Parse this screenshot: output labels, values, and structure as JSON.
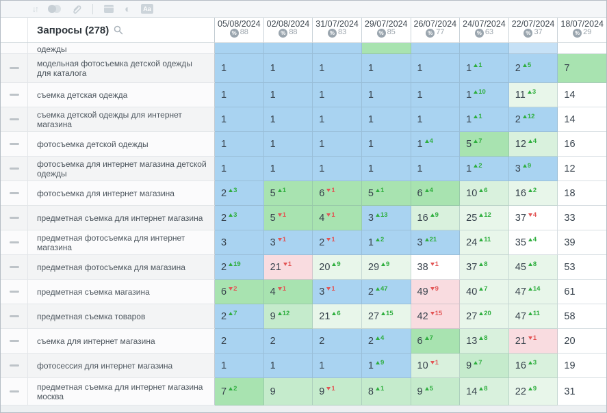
{
  "toolbar": {
    "icons": [
      "sort-icon",
      "groups-icon",
      "link-icon",
      "window-icon",
      "contrast-icon",
      "text-style-icon"
    ]
  },
  "header": {
    "queries_label": "Запросы (278)",
    "columns": [
      {
        "date": "05/08/2024",
        "score": "88"
      },
      {
        "date": "02/08/2024",
        "score": "88"
      },
      {
        "date": "31/07/2024",
        "score": "83"
      },
      {
        "date": "29/07/2024",
        "score": "85"
      },
      {
        "date": "26/07/2024",
        "score": "77"
      },
      {
        "date": "24/07/2024",
        "score": "63"
      },
      {
        "date": "22/07/2024",
        "score": "37"
      },
      {
        "date": "18/07/2024",
        "score": "29"
      }
    ]
  },
  "colors": {
    "b": "#a9d3f1",
    "b2": "#c6e1f6",
    "g": "#a8e3b0",
    "g2": "#c5ebcc",
    "g3": "#d9f1dd",
    "g4": "#e8f6ea",
    "p": "#f9dce0",
    "w": "#ffffff"
  },
  "rows": [
    {
      "partial": true,
      "keyword": "одежды",
      "cells": [
        {
          "bg": "b"
        },
        {
          "bg": "b"
        },
        {
          "bg": "b"
        },
        {
          "bg": "g"
        },
        {
          "bg": "b"
        },
        {
          "bg": "b"
        },
        {
          "bg": "b2"
        },
        {
          "bg": "w"
        }
      ]
    },
    {
      "keyword": "модельная фотосъемка детской одежды для каталога",
      "h": 42,
      "cells": [
        {
          "v": "1",
          "bg": "b"
        },
        {
          "v": "1",
          "bg": "b"
        },
        {
          "v": "1",
          "bg": "b"
        },
        {
          "v": "1",
          "bg": "b"
        },
        {
          "v": "1",
          "bg": "b"
        },
        {
          "v": "1",
          "d": "1",
          "dir": "up",
          "bg": "b"
        },
        {
          "v": "2",
          "d": "5",
          "dir": "up",
          "bg": "b"
        },
        {
          "v": "7",
          "bg": "g"
        }
      ]
    },
    {
      "keyword": "съемка детская одежда",
      "cells": [
        {
          "v": "1",
          "bg": "b"
        },
        {
          "v": "1",
          "bg": "b"
        },
        {
          "v": "1",
          "bg": "b"
        },
        {
          "v": "1",
          "bg": "b"
        },
        {
          "v": "1",
          "bg": "b"
        },
        {
          "v": "1",
          "d": "10",
          "dir": "up",
          "bg": "b"
        },
        {
          "v": "11",
          "d": "3",
          "dir": "up",
          "bg": "g4"
        },
        {
          "v": "14",
          "bg": "w"
        }
      ]
    },
    {
      "keyword": "съемка детской одежды для интернет магазина",
      "cells": [
        {
          "v": "1",
          "bg": "b"
        },
        {
          "v": "1",
          "bg": "b"
        },
        {
          "v": "1",
          "bg": "b"
        },
        {
          "v": "1",
          "bg": "b"
        },
        {
          "v": "1",
          "bg": "b"
        },
        {
          "v": "1",
          "d": "1",
          "dir": "up",
          "bg": "b"
        },
        {
          "v": "2",
          "d": "12",
          "dir": "up",
          "bg": "b"
        },
        {
          "v": "14",
          "bg": "w"
        }
      ]
    },
    {
      "keyword": "фотосъемка детской одежды",
      "cells": [
        {
          "v": "1",
          "bg": "b"
        },
        {
          "v": "1",
          "bg": "b"
        },
        {
          "v": "1",
          "bg": "b"
        },
        {
          "v": "1",
          "bg": "b"
        },
        {
          "v": "1",
          "d": "4",
          "dir": "up",
          "bg": "b"
        },
        {
          "v": "5",
          "d": "7",
          "dir": "up",
          "bg": "g"
        },
        {
          "v": "12",
          "d": "4",
          "dir": "up",
          "bg": "g3"
        },
        {
          "v": "16",
          "bg": "w"
        }
      ]
    },
    {
      "keyword": "фотосъемка для интернет магазина детской одежды",
      "cells": [
        {
          "v": "1",
          "bg": "b"
        },
        {
          "v": "1",
          "bg": "b"
        },
        {
          "v": "1",
          "bg": "b"
        },
        {
          "v": "1",
          "bg": "b"
        },
        {
          "v": "1",
          "bg": "b"
        },
        {
          "v": "1",
          "d": "2",
          "dir": "up",
          "bg": "b"
        },
        {
          "v": "3",
          "d": "9",
          "dir": "up",
          "bg": "b"
        },
        {
          "v": "12",
          "bg": "w"
        }
      ]
    },
    {
      "keyword": "фотосъемка для интернет магазина",
      "cells": [
        {
          "v": "2",
          "d": "3",
          "dir": "up",
          "bg": "b"
        },
        {
          "v": "5",
          "d": "1",
          "dir": "up",
          "bg": "g"
        },
        {
          "v": "6",
          "d": "1",
          "dir": "down",
          "bg": "g"
        },
        {
          "v": "5",
          "d": "1",
          "dir": "up",
          "bg": "g"
        },
        {
          "v": "6",
          "d": "4",
          "dir": "up",
          "bg": "g"
        },
        {
          "v": "10",
          "d": "6",
          "dir": "up",
          "bg": "g3"
        },
        {
          "v": "16",
          "d": "2",
          "dir": "up",
          "bg": "g4"
        },
        {
          "v": "18",
          "bg": "w"
        }
      ]
    },
    {
      "keyword": "предметная съемка для интернет магазина",
      "cells": [
        {
          "v": "2",
          "d": "3",
          "dir": "up",
          "bg": "b"
        },
        {
          "v": "5",
          "d": "1",
          "dir": "down",
          "bg": "g"
        },
        {
          "v": "4",
          "d": "1",
          "dir": "down",
          "bg": "g"
        },
        {
          "v": "3",
          "d": "13",
          "dir": "up",
          "bg": "b"
        },
        {
          "v": "16",
          "d": "9",
          "dir": "up",
          "bg": "g3"
        },
        {
          "v": "25",
          "d": "12",
          "dir": "up",
          "bg": "g4"
        },
        {
          "v": "37",
          "d": "4",
          "dir": "down",
          "bg": "w"
        },
        {
          "v": "33",
          "bg": "w"
        }
      ]
    },
    {
      "keyword": "предметная фотосъемка для интернет магазина",
      "cells": [
        {
          "v": "3",
          "bg": "b"
        },
        {
          "v": "3",
          "d": "1",
          "dir": "down",
          "bg": "b"
        },
        {
          "v": "2",
          "d": "1",
          "dir": "down",
          "bg": "b"
        },
        {
          "v": "1",
          "d": "2",
          "dir": "up",
          "bg": "b"
        },
        {
          "v": "3",
          "d": "21",
          "dir": "up",
          "bg": "b"
        },
        {
          "v": "24",
          "d": "11",
          "dir": "up",
          "bg": "g4"
        },
        {
          "v": "35",
          "d": "4",
          "dir": "up",
          "bg": "w"
        },
        {
          "v": "39",
          "bg": "w"
        }
      ]
    },
    {
      "keyword": "предметная фотосъемка для магазина",
      "cells": [
        {
          "v": "2",
          "d": "19",
          "dir": "up",
          "bg": "b"
        },
        {
          "v": "21",
          "d": "1",
          "dir": "down",
          "bg": "p"
        },
        {
          "v": "20",
          "d": "9",
          "dir": "up",
          "bg": "g4"
        },
        {
          "v": "29",
          "d": "9",
          "dir": "up",
          "bg": "g4"
        },
        {
          "v": "38",
          "d": "1",
          "dir": "down",
          "bg": "w"
        },
        {
          "v": "37",
          "d": "8",
          "dir": "up",
          "bg": "g4"
        },
        {
          "v": "45",
          "d": "8",
          "dir": "up",
          "bg": "g4"
        },
        {
          "v": "53",
          "bg": "w"
        }
      ]
    },
    {
      "keyword": "предметная съемка магазина",
      "cells": [
        {
          "v": "6",
          "d": "2",
          "dir": "down",
          "bg": "g"
        },
        {
          "v": "4",
          "d": "1",
          "dir": "down",
          "bg": "g"
        },
        {
          "v": "3",
          "d": "1",
          "dir": "down",
          "bg": "b"
        },
        {
          "v": "2",
          "d": "47",
          "dir": "up",
          "bg": "b"
        },
        {
          "v": "49",
          "d": "9",
          "dir": "down",
          "bg": "p"
        },
        {
          "v": "40",
          "d": "7",
          "dir": "up",
          "bg": "g4"
        },
        {
          "v": "47",
          "d": "14",
          "dir": "up",
          "bg": "g4"
        },
        {
          "v": "61",
          "bg": "w"
        }
      ]
    },
    {
      "keyword": "предметная съемка товаров",
      "cells": [
        {
          "v": "2",
          "d": "7",
          "dir": "up",
          "bg": "b"
        },
        {
          "v": "9",
          "d": "12",
          "dir": "up",
          "bg": "g2"
        },
        {
          "v": "21",
          "d": "6",
          "dir": "up",
          "bg": "g4"
        },
        {
          "v": "27",
          "d": "15",
          "dir": "up",
          "bg": "g4"
        },
        {
          "v": "42",
          "d": "15",
          "dir": "down",
          "bg": "p"
        },
        {
          "v": "27",
          "d": "20",
          "dir": "up",
          "bg": "g4"
        },
        {
          "v": "47",
          "d": "11",
          "dir": "up",
          "bg": "g4"
        },
        {
          "v": "58",
          "bg": "w"
        }
      ]
    },
    {
      "keyword": "съемка для интернет магазина",
      "cells": [
        {
          "v": "2",
          "bg": "b"
        },
        {
          "v": "2",
          "bg": "b"
        },
        {
          "v": "2",
          "bg": "b"
        },
        {
          "v": "2",
          "d": "4",
          "dir": "up",
          "bg": "b"
        },
        {
          "v": "6",
          "d": "7",
          "dir": "up",
          "bg": "g"
        },
        {
          "v": "13",
          "d": "8",
          "dir": "up",
          "bg": "g3"
        },
        {
          "v": "21",
          "d": "1",
          "dir": "down",
          "bg": "p"
        },
        {
          "v": "20",
          "bg": "w"
        }
      ]
    },
    {
      "keyword": "фотосессия для интернет магазина",
      "cells": [
        {
          "v": "1",
          "bg": "b"
        },
        {
          "v": "1",
          "bg": "b"
        },
        {
          "v": "1",
          "bg": "b"
        },
        {
          "v": "1",
          "d": "9",
          "dir": "up",
          "bg": "b"
        },
        {
          "v": "10",
          "d": "1",
          "dir": "down",
          "bg": "g3"
        },
        {
          "v": "9",
          "d": "7",
          "dir": "up",
          "bg": "g2"
        },
        {
          "v": "16",
          "d": "3",
          "dir": "up",
          "bg": "g3"
        },
        {
          "v": "19",
          "bg": "w"
        }
      ]
    },
    {
      "keyword": "предметная съемка для интернет магазина москва",
      "h": 40,
      "cells": [
        {
          "v": "7",
          "d": "2",
          "dir": "up",
          "bg": "g"
        },
        {
          "v": "9",
          "bg": "g2"
        },
        {
          "v": "9",
          "d": "1",
          "dir": "down",
          "bg": "g2"
        },
        {
          "v": "8",
          "d": "1",
          "dir": "up",
          "bg": "g2"
        },
        {
          "v": "9",
          "d": "5",
          "dir": "up",
          "bg": "g2"
        },
        {
          "v": "14",
          "d": "8",
          "dir": "up",
          "bg": "g3"
        },
        {
          "v": "22",
          "d": "9",
          "dir": "up",
          "bg": "g4"
        },
        {
          "v": "31",
          "bg": "w"
        }
      ]
    }
  ]
}
